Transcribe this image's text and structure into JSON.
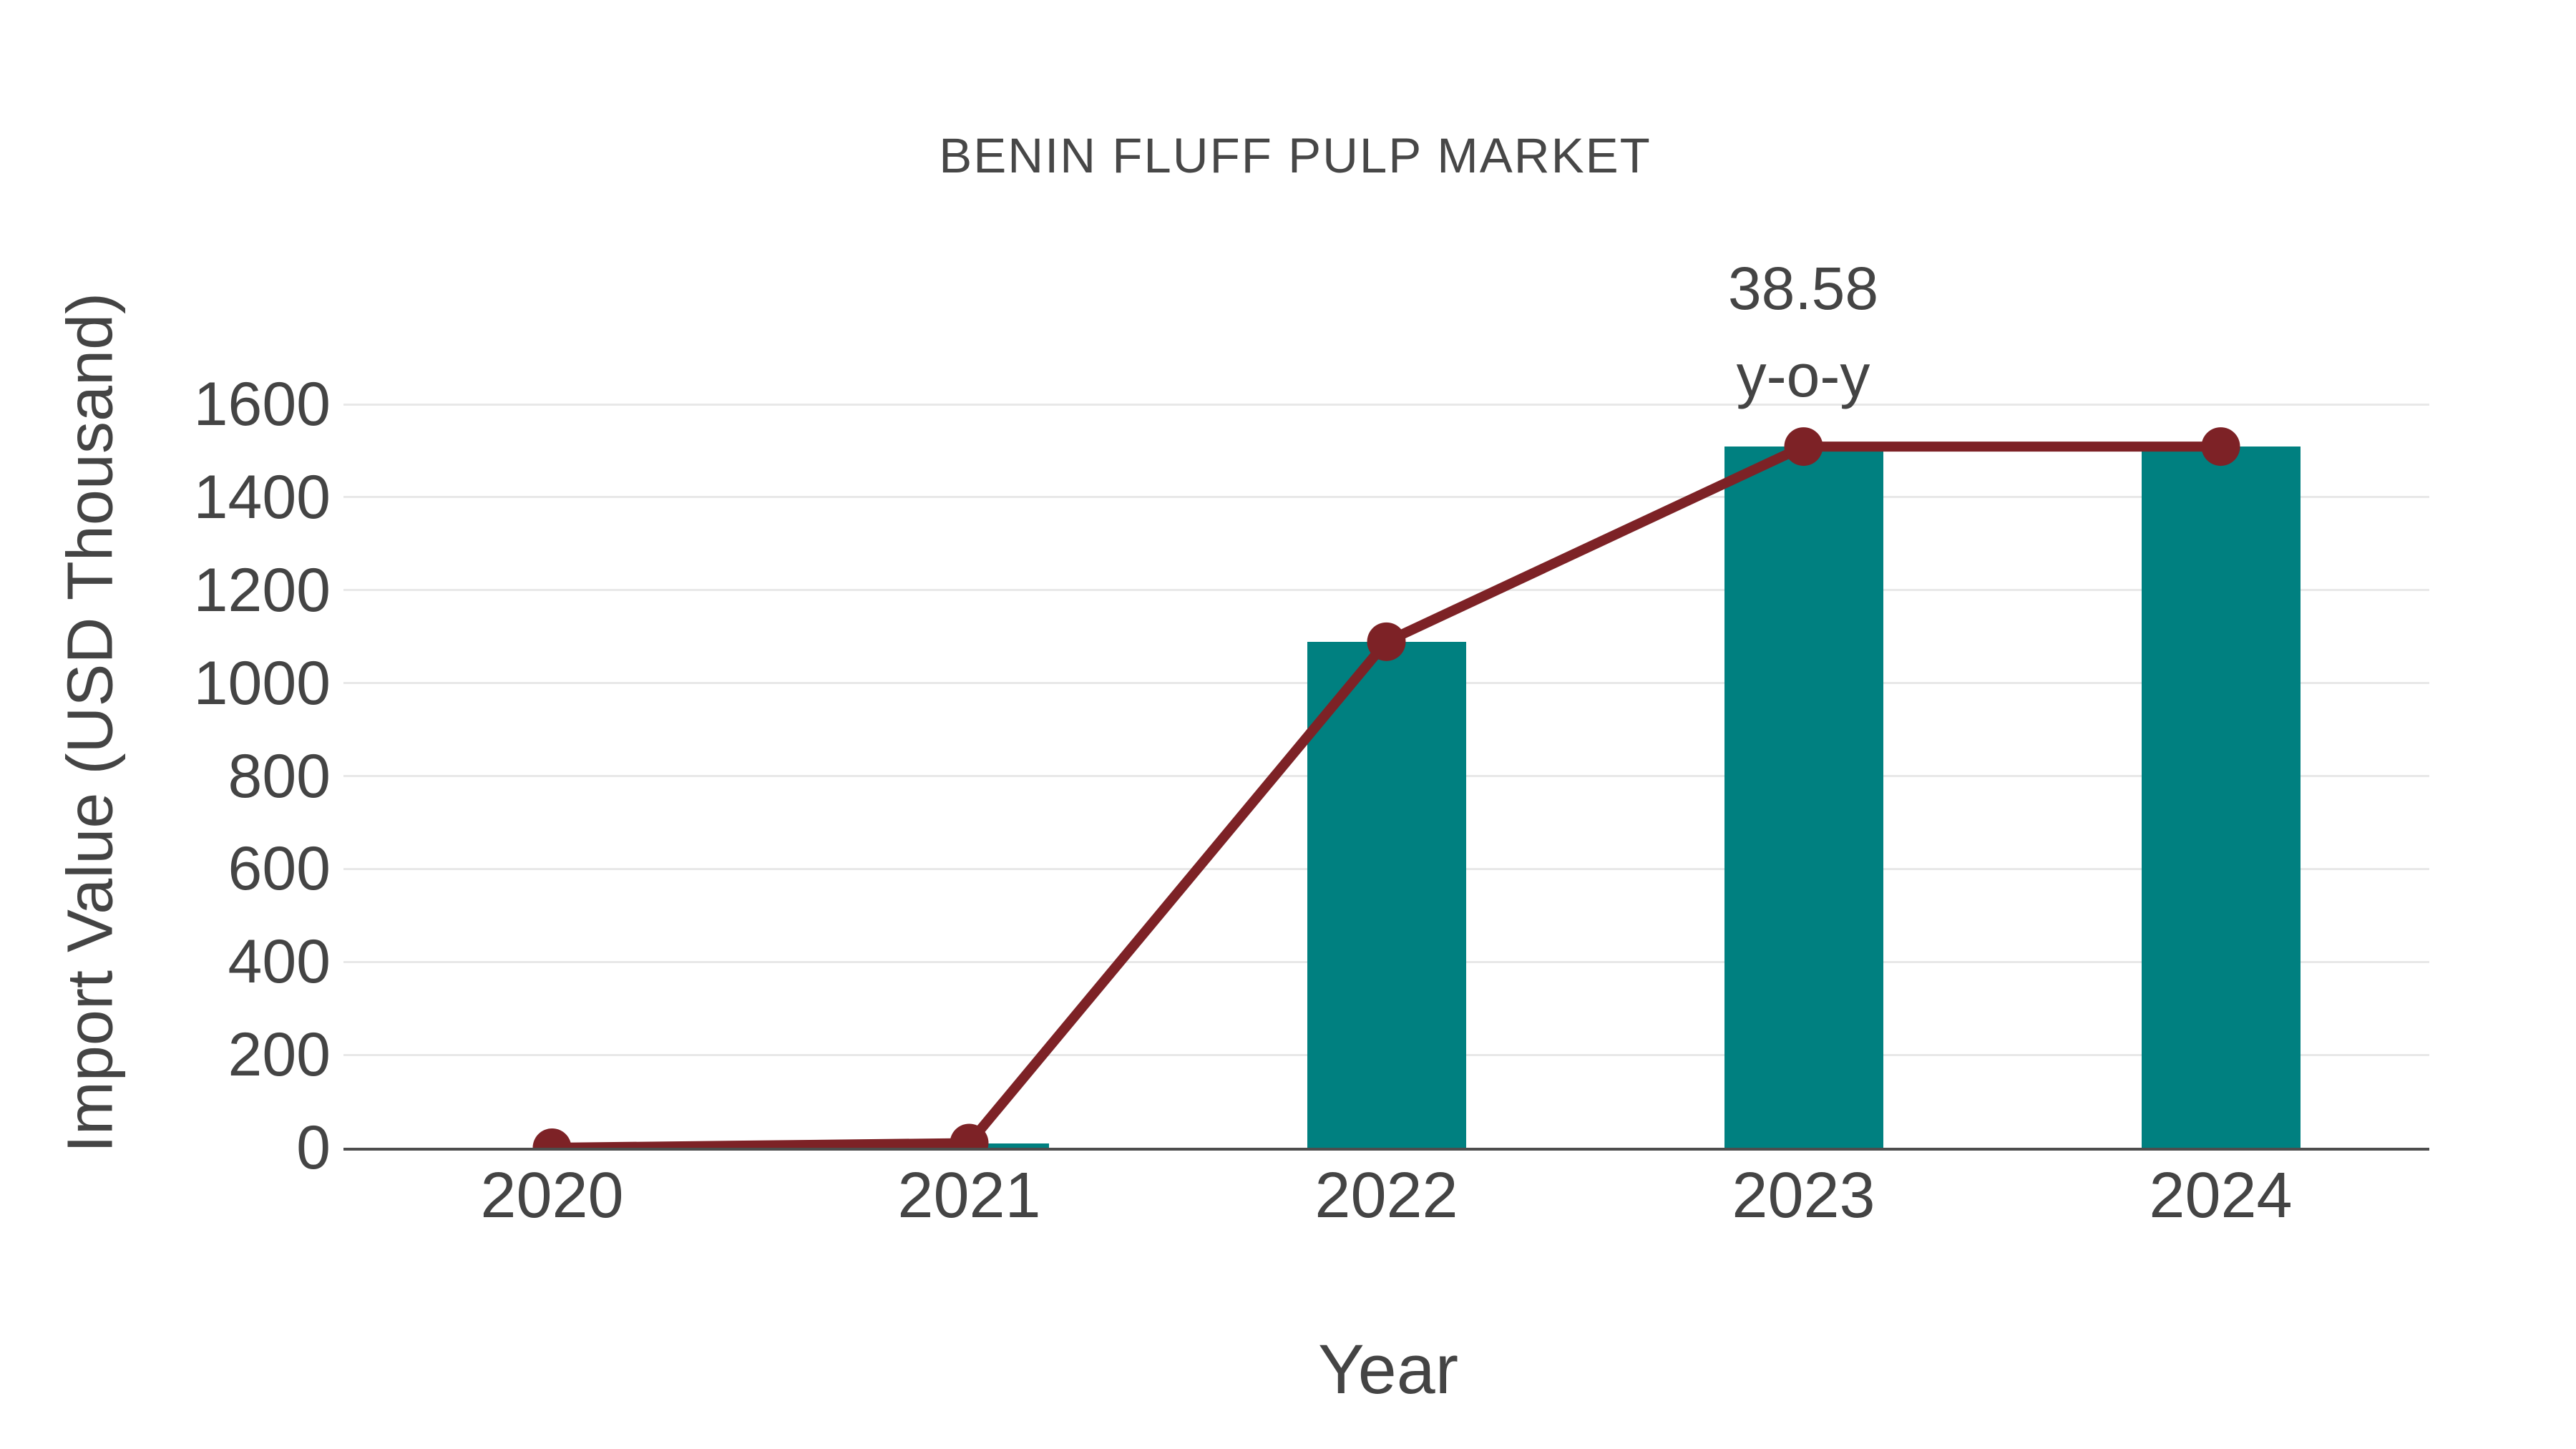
{
  "chart_data": {
    "type": "bar",
    "title": "BENIN FLUFF PULP MARKET",
    "xlabel": "Year",
    "ylabel": "Import Value (USD Thousand)",
    "categories": [
      "2020",
      "2021",
      "2022",
      "2023",
      "2024"
    ],
    "series": [
      {
        "name": "import-value-bars",
        "type": "bar",
        "values": [
          0,
          10,
          1089,
          1509,
          1509
        ],
        "color": "#008080"
      },
      {
        "name": "import-value-trend",
        "type": "line",
        "values": [
          0,
          10,
          1089,
          1509,
          1509
        ],
        "color": "#7d2226"
      }
    ],
    "yticks": [
      0,
      200,
      400,
      600,
      800,
      1000,
      1200,
      1400,
      1600
    ],
    "ylim": [
      0,
      1600
    ],
    "grid": "horizontal",
    "legend_position": "none",
    "annotation": {
      "line1": "38.58",
      "line2": "y-o-y",
      "anchor_category": "2023"
    }
  },
  "colors": {
    "bar": "#008080",
    "line": "#7d2226",
    "grid": "#e8e8e8",
    "axis": "#4d4d4d",
    "text": "#444444",
    "background": "#ffffff"
  }
}
